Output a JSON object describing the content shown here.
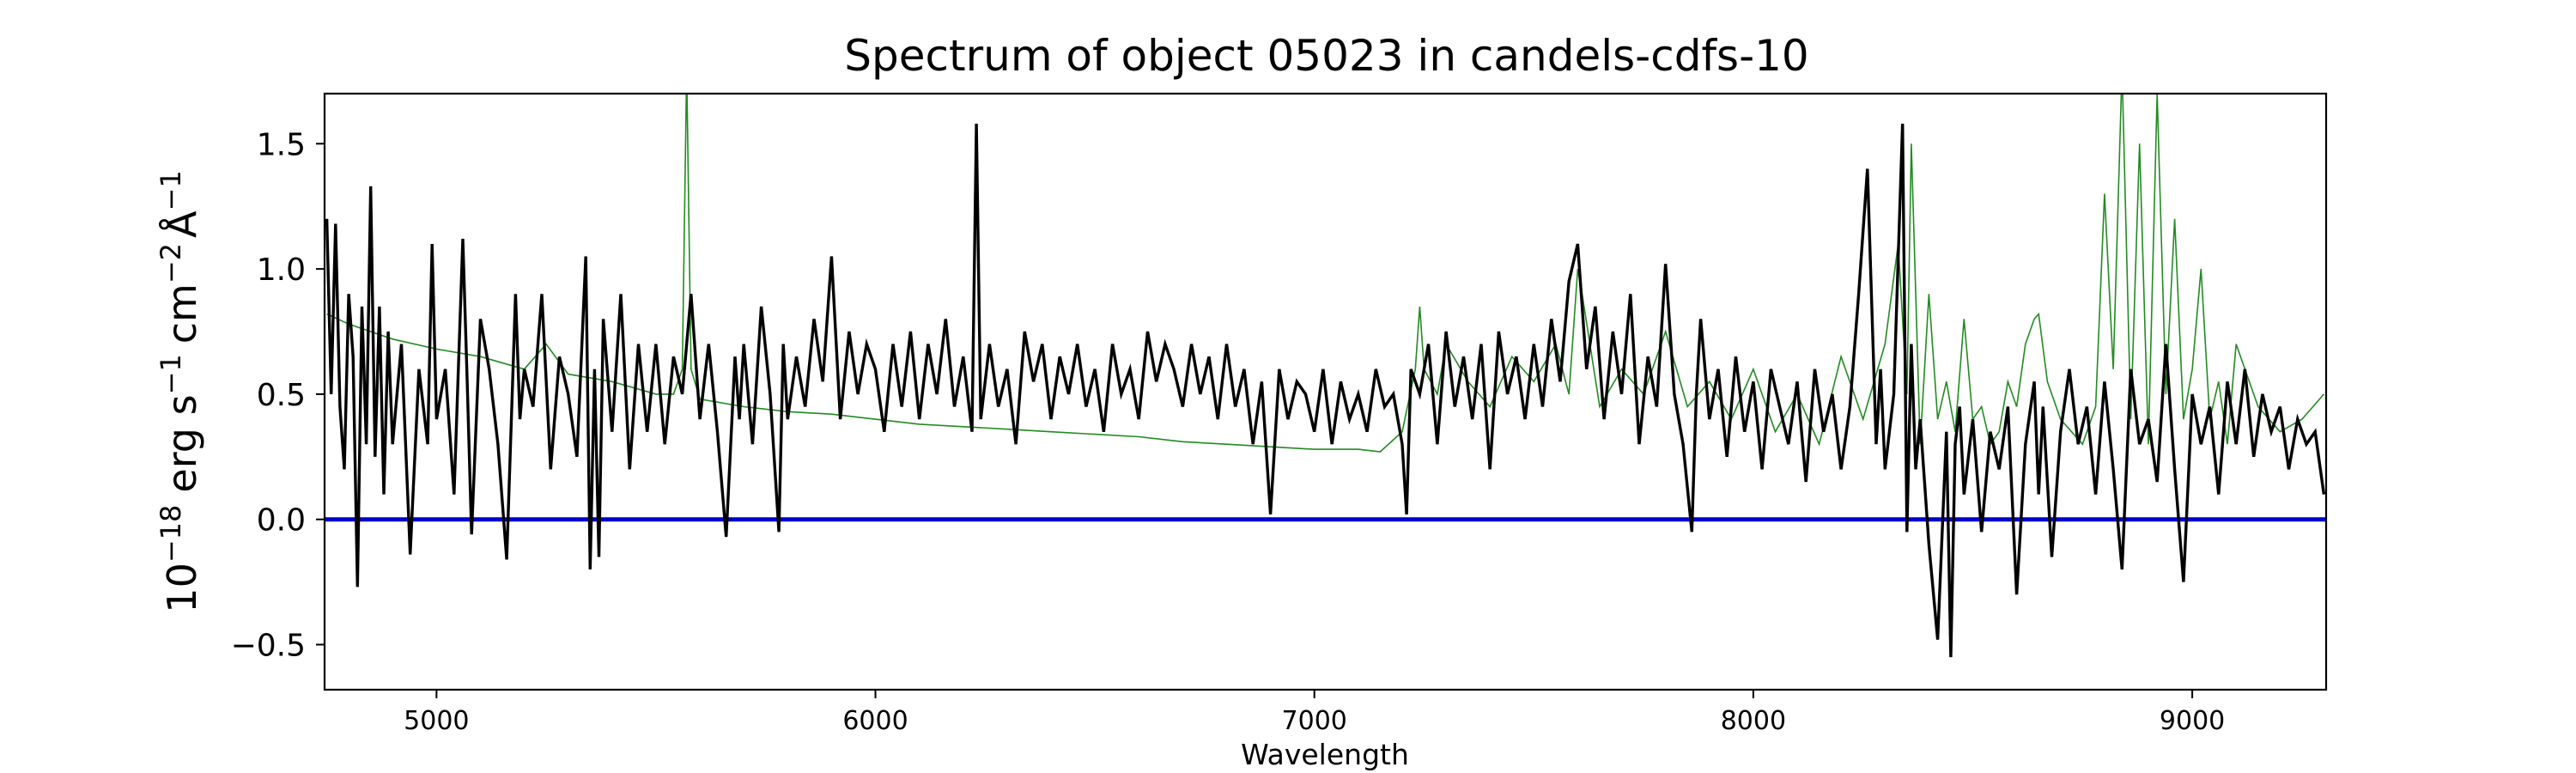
{
  "chart_data": {
    "type": "line",
    "title": "Spectrum of object 05023 in candels-cdfs-10",
    "xlabel": "Wavelength",
    "ylabel": {
      "prefix": "10",
      "exponent": "−18",
      "unit": "erg s",
      "s_exp": "−1",
      "cm": "cm",
      "cm_exp": "−2",
      "angstrom": "Å",
      "a_exp": "−1"
    },
    "xlim": [
      4745,
      9305
    ],
    "ylim": [
      -0.68,
      1.7
    ],
    "xticks": [
      5000,
      6000,
      7000,
      8000,
      9000
    ],
    "yticks": [
      -0.5,
      0.0,
      0.5,
      1.0,
      1.5
    ],
    "ytick_labels": [
      "−0.5",
      "0.0",
      "0.5",
      "1.0",
      "1.5"
    ],
    "grid": false,
    "colors": {
      "flux": "#000000",
      "model": "#228b22",
      "zero": "#0000cc"
    },
    "series": [
      {
        "role": "flux",
        "color": "#000000",
        "x": [
          4750,
          4760,
          4770,
          4780,
          4790,
          4800,
          4810,
          4820,
          4830,
          4840,
          4850,
          4860,
          4870,
          4880,
          4890,
          4900,
          4920,
          4940,
          4960,
          4980,
          4990,
          5000,
          5020,
          5040,
          5060,
          5070,
          5080,
          5100,
          5120,
          5140,
          5160,
          5180,
          5190,
          5200,
          5220,
          5240,
          5260,
          5280,
          5300,
          5320,
          5340,
          5350,
          5360,
          5370,
          5380,
          5400,
          5420,
          5440,
          5460,
          5480,
          5500,
          5520,
          5540,
          5560,
          5580,
          5600,
          5620,
          5640,
          5660,
          5680,
          5690,
          5700,
          5720,
          5740,
          5760,
          5780,
          5790,
          5800,
          5820,
          5840,
          5860,
          5880,
          5900,
          5920,
          5940,
          5960,
          5980,
          6000,
          6020,
          6040,
          6060,
          6080,
          6100,
          6120,
          6140,
          6160,
          6180,
          6200,
          6220,
          6230,
          6240,
          6260,
          6280,
          6300,
          6320,
          6340,
          6360,
          6380,
          6400,
          6420,
          6440,
          6460,
          6480,
          6500,
          6520,
          6540,
          6560,
          6580,
          6600,
          6620,
          6640,
          6660,
          6680,
          6700,
          6720,
          6740,
          6760,
          6780,
          6800,
          6820,
          6840,
          6860,
          6880,
          6900,
          6920,
          6940,
          6960,
          6980,
          7000,
          7020,
          7040,
          7060,
          7080,
          7100,
          7120,
          7140,
          7160,
          7180,
          7200,
          7210,
          7220,
          7240,
          7260,
          7280,
          7300,
          7320,
          7340,
          7360,
          7380,
          7400,
          7420,
          7440,
          7460,
          7480,
          7500,
          7520,
          7540,
          7560,
          7580,
          7600,
          7620,
          7640,
          7660,
          7680,
          7700,
          7720,
          7740,
          7760,
          7780,
          7800,
          7820,
          7840,
          7860,
          7870,
          7880,
          7900,
          7920,
          7940,
          7960,
          7980,
          8000,
          8020,
          8040,
          8060,
          8080,
          8100,
          8120,
          8140,
          8160,
          8180,
          8200,
          8220,
          8240,
          8260,
          8280,
          8290,
          8300,
          8320,
          8340,
          8350,
          8360,
          8370,
          8380,
          8400,
          8420,
          8440,
          8450,
          8460,
          8470,
          8480,
          8500,
          8520,
          8540,
          8560,
          8580,
          8600,
          8620,
          8640,
          8650,
          8660,
          8680,
          8700,
          8720,
          8740,
          8760,
          8780,
          8800,
          8820,
          8840,
          8860,
          8880,
          8900,
          8920,
          8940,
          8960,
          8980,
          9000,
          9020,
          9040,
          9060,
          9080,
          9100,
          9120,
          9140,
          9160,
          9180,
          9200,
          9220,
          9240,
          9260,
          9280,
          9300
        ],
        "y": [
          1.2,
          0.5,
          1.18,
          0.45,
          0.2,
          0.9,
          0.65,
          -0.27,
          0.85,
          0.3,
          1.33,
          0.25,
          0.85,
          0.1,
          0.75,
          0.3,
          0.7,
          -0.14,
          0.6,
          0.3,
          1.1,
          0.4,
          0.6,
          0.1,
          1.12,
          0.55,
          -0.06,
          0.8,
          0.6,
          0.3,
          -0.16,
          0.9,
          0.4,
          0.6,
          0.45,
          0.9,
          0.2,
          0.65,
          0.5,
          0.25,
          1.05,
          -0.2,
          0.6,
          -0.15,
          0.8,
          0.35,
          0.9,
          0.2,
          0.7,
          0.35,
          0.7,
          0.3,
          0.65,
          0.5,
          0.9,
          0.4,
          0.7,
          0.35,
          -0.07,
          0.65,
          0.4,
          0.7,
          0.3,
          0.85,
          0.5,
          -0.05,
          0.7,
          0.4,
          0.65,
          0.45,
          0.8,
          0.55,
          1.05,
          0.4,
          0.75,
          0.5,
          0.7,
          0.6,
          0.35,
          0.7,
          0.45,
          0.75,
          0.4,
          0.7,
          0.5,
          0.8,
          0.45,
          0.65,
          0.35,
          1.58,
          0.4,
          0.7,
          0.45,
          0.6,
          0.3,
          0.75,
          0.55,
          0.7,
          0.4,
          0.65,
          0.5,
          0.7,
          0.45,
          0.6,
          0.35,
          0.7,
          0.5,
          0.6,
          0.4,
          0.75,
          0.55,
          0.7,
          0.6,
          0.45,
          0.7,
          0.5,
          0.65,
          0.4,
          0.7,
          0.45,
          0.6,
          0.3,
          0.55,
          0.02,
          0.6,
          0.4,
          0.55,
          0.5,
          0.35,
          0.6,
          0.3,
          0.55,
          0.4,
          0.5,
          0.35,
          0.6,
          0.45,
          0.5,
          0.3,
          0.02,
          0.6,
          0.5,
          0.7,
          0.3,
          0.75,
          0.45,
          0.65,
          0.4,
          0.7,
          0.2,
          0.75,
          0.5,
          0.65,
          0.4,
          0.7,
          0.45,
          0.8,
          0.55,
          0.95,
          1.1,
          0.6,
          0.85,
          0.4,
          0.75,
          0.5,
          0.9,
          0.3,
          0.65,
          0.45,
          1.02,
          0.5,
          0.3,
          -0.05,
          0.5,
          0.8,
          0.4,
          0.6,
          0.25,
          0.65,
          0.35,
          0.55,
          0.2,
          0.6,
          0.45,
          0.3,
          0.55,
          0.15,
          0.6,
          0.35,
          0.5,
          0.2,
          0.45,
          0.9,
          1.4,
          0.3,
          0.6,
          0.2,
          0.5,
          1.58,
          -0.05,
          0.7,
          0.2,
          0.4,
          -0.1,
          -0.48,
          0.35,
          -0.55,
          0.3,
          0.45,
          0.1,
          0.4,
          -0.05,
          0.35,
          0.2,
          0.45,
          -0.3,
          0.3,
          0.55,
          0.1,
          0.45,
          -0.15,
          0.35,
          0.6,
          0.3,
          0.45,
          0.1,
          0.55,
          0.2,
          -0.2,
          0.6,
          0.3,
          0.4,
          0.15,
          0.7,
          0.2,
          -0.25,
          0.5,
          0.3,
          0.45,
          0.1,
          0.55,
          0.3,
          0.6,
          0.25,
          0.5,
          0.35,
          0.45,
          0.2,
          0.4,
          0.3,
          0.35,
          0.1
        ]
      },
      {
        "role": "model",
        "color": "#228b22",
        "x": [
          4750,
          4800,
          4900,
          5000,
          5100,
          5200,
          5250,
          5300,
          5400,
          5500,
          5540,
          5560,
          5570,
          5580,
          5600,
          5700,
          5800,
          5900,
          6000,
          6100,
          6200,
          6300,
          6400,
          6500,
          6600,
          6700,
          6800,
          6900,
          7000,
          7100,
          7150,
          7200,
          7230,
          7240,
          7250,
          7280,
          7300,
          7350,
          7400,
          7450,
          7500,
          7550,
          7580,
          7600,
          7610,
          7650,
          7700,
          7750,
          7800,
          7850,
          7900,
          7950,
          8000,
          8050,
          8100,
          8150,
          8200,
          8250,
          8300,
          8330,
          8350,
          8360,
          8380,
          8400,
          8420,
          8440,
          8460,
          8480,
          8500,
          8520,
          8540,
          8560,
          8580,
          8600,
          8620,
          8640,
          8650,
          8670,
          8700,
          8750,
          8780,
          8800,
          8820,
          8840,
          8860,
          8880,
          8900,
          8920,
          8940,
          8960,
          8980,
          9000,
          9020,
          9040,
          9060,
          9080,
          9100,
          9150,
          9200,
          9250,
          9300
        ],
        "y": [
          0.82,
          0.78,
          0.72,
          0.68,
          0.65,
          0.6,
          0.7,
          0.58,
          0.55,
          0.5,
          0.5,
          0.6,
          1.8,
          0.6,
          0.48,
          0.45,
          0.43,
          0.42,
          0.4,
          0.38,
          0.37,
          0.36,
          0.35,
          0.34,
          0.33,
          0.31,
          0.3,
          0.29,
          0.28,
          0.28,
          0.27,
          0.35,
          0.6,
          0.85,
          0.6,
          0.5,
          0.7,
          0.55,
          0.45,
          0.65,
          0.55,
          0.7,
          0.5,
          1.0,
          0.9,
          0.45,
          0.6,
          0.5,
          0.75,
          0.45,
          0.55,
          0.4,
          0.6,
          0.35,
          0.5,
          0.3,
          0.65,
          0.4,
          0.7,
          1.1,
          0.5,
          1.5,
          0.3,
          0.9,
          0.4,
          0.55,
          0.35,
          0.8,
          0.4,
          0.45,
          0.3,
          0.35,
          0.55,
          0.45,
          0.7,
          0.8,
          0.82,
          0.55,
          0.4,
          0.3,
          0.45,
          1.3,
          0.6,
          1.8,
          0.4,
          1.5,
          0.3,
          1.7,
          0.5,
          1.2,
          0.4,
          0.6,
          1.0,
          0.4,
          0.55,
          0.3,
          0.7,
          0.45,
          0.35,
          0.4,
          0.5
        ]
      },
      {
        "role": "zero",
        "color": "#0000cc",
        "x": [
          4745,
          9305
        ],
        "y": [
          0.0,
          0.0
        ]
      }
    ]
  }
}
